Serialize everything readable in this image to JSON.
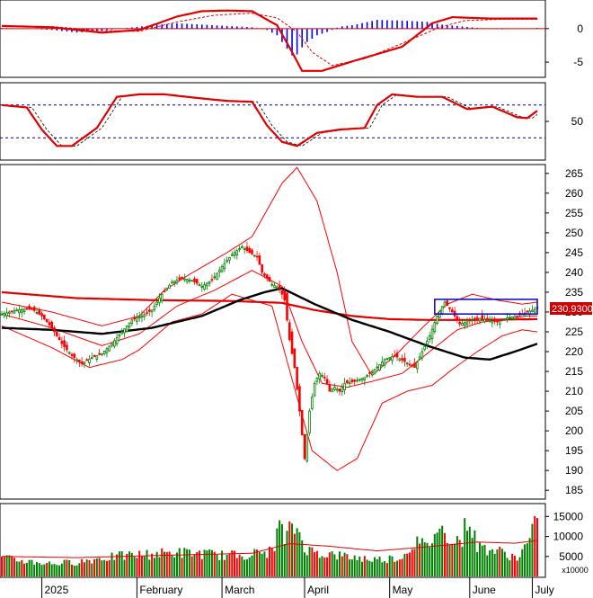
{
  "chart_data": {
    "type": "candlestick",
    "title": "",
    "x_month_labels": [
      "2025",
      "February",
      "March",
      "April",
      "May",
      "June",
      "July"
    ],
    "price": {
      "ylim": [
        183,
        267
      ],
      "ticks": [
        185,
        190,
        195,
        200,
        205,
        210,
        215,
        220,
        225,
        230,
        235,
        240,
        245,
        250,
        255,
        260,
        265
      ],
      "last_price_label": "230.9300",
      "colors": {
        "up": "#008000",
        "down": "#ff0000",
        "bollinger": "#ff0000",
        "ma_black": "#000000",
        "ma_red": "#e00000",
        "box": "#0000cc"
      },
      "close_path": [
        [
          0,
          229.5
        ],
        [
          6,
          230.5
        ],
        [
          12,
          230.8
        ],
        [
          16,
          229.0
        ],
        [
          20,
          226.0
        ],
        [
          24,
          222.0
        ],
        [
          28,
          219.0
        ],
        [
          32,
          217.0
        ],
        [
          36,
          218.5
        ],
        [
          40,
          219.5
        ],
        [
          44,
          222.0
        ],
        [
          48,
          225.0
        ],
        [
          52,
          228.0
        ],
        [
          56,
          229.0
        ],
        [
          60,
          230.5
        ],
        [
          64,
          234.5
        ],
        [
          68,
          237.5
        ],
        [
          72,
          238.5
        ],
        [
          76,
          238.0
        ],
        [
          80,
          236.5
        ],
        [
          84,
          238.0
        ],
        [
          88,
          241.5
        ],
        [
          92,
          244.5
        ],
        [
          96,
          246.5
        ],
        [
          99,
          245.0
        ],
        [
          102,
          244.0
        ],
        [
          104,
          240.0
        ],
        [
          108,
          237.0
        ],
        [
          111,
          236.0
        ],
        [
          113,
          233.0
        ],
        [
          115,
          223.0
        ],
        [
          117,
          216.0
        ],
        [
          119,
          205.0
        ],
        [
          121,
          193.0
        ],
        [
          123,
          205.0
        ],
        [
          125,
          212.0
        ],
        [
          127,
          214.5
        ],
        [
          129,
          213.5
        ],
        [
          131,
          210.0
        ],
        [
          133,
          211.0
        ],
        [
          135,
          210.0
        ],
        [
          137,
          212.0
        ],
        [
          141,
          212.5
        ],
        [
          145,
          213.5
        ],
        [
          149,
          215.5
        ],
        [
          153,
          218.0
        ],
        [
          157,
          219.0
        ],
        [
          161,
          217.5
        ],
        [
          165,
          216.0
        ],
        [
          168,
          220.0
        ],
        [
          171,
          224.0
        ],
        [
          174,
          229.0
        ],
        [
          177,
          232.5
        ],
        [
          180,
          230.0
        ],
        [
          183,
          227.0
        ],
        [
          186,
          227.5
        ],
        [
          190,
          228.5
        ],
        [
          194,
          228.0
        ],
        [
          198,
          227.5
        ],
        [
          202,
          228.5
        ],
        [
          206,
          229.0
        ],
        [
          210,
          230.0
        ],
        [
          214,
          230.9
        ]
      ],
      "bollinger_upper": [
        [
          0,
          232.5
        ],
        [
          20,
          230.0
        ],
        [
          40,
          226.5
        ],
        [
          55,
          229.0
        ],
        [
          65,
          235.5
        ],
        [
          75,
          239.5
        ],
        [
          90,
          245.0
        ],
        [
          100,
          249.0
        ],
        [
          112,
          262.5
        ],
        [
          118,
          266.5
        ],
        [
          126,
          258.0
        ],
        [
          134,
          240.0
        ],
        [
          140,
          222.5
        ],
        [
          148,
          214.0
        ],
        [
          158,
          219.5
        ],
        [
          168,
          226.0
        ],
        [
          178,
          232.0
        ],
        [
          188,
          234.5
        ],
        [
          198,
          233.0
        ],
        [
          208,
          232.0
        ],
        [
          214,
          232.5
        ]
      ],
      "bollinger_lower": [
        [
          0,
          226.5
        ],
        [
          20,
          221.0
        ],
        [
          35,
          216.0
        ],
        [
          48,
          218.0
        ],
        [
          55,
          220.5
        ],
        [
          68,
          227.5
        ],
        [
          80,
          229.5
        ],
        [
          92,
          234.5
        ],
        [
          108,
          231.5
        ],
        [
          116,
          213.0
        ],
        [
          124,
          195.0
        ],
        [
          134,
          190.0
        ],
        [
          142,
          193.0
        ],
        [
          152,
          207.0
        ],
        [
          162,
          210.0
        ],
        [
          172,
          211.5
        ],
        [
          180,
          215.5
        ],
        [
          190,
          220.0
        ],
        [
          200,
          224.0
        ],
        [
          208,
          225.5
        ],
        [
          214,
          225.0
        ]
      ],
      "bollinger_mid": [
        [
          0,
          229.5
        ],
        [
          20,
          226.0
        ],
        [
          40,
          221.5
        ],
        [
          55,
          224.5
        ],
        [
          70,
          231.5
        ],
        [
          85,
          235.5
        ],
        [
          100,
          240.5
        ],
        [
          112,
          236.5
        ],
        [
          120,
          222.5
        ],
        [
          128,
          212.0
        ],
        [
          138,
          211.0
        ],
        [
          148,
          212.5
        ],
        [
          160,
          214.5
        ],
        [
          172,
          220.5
        ],
        [
          182,
          225.5
        ],
        [
          192,
          227.5
        ],
        [
          200,
          228.0
        ],
        [
          210,
          229.0
        ],
        [
          214,
          229.0
        ]
      ],
      "ma_black": [
        [
          0,
          226.0
        ],
        [
          20,
          225.5
        ],
        [
          40,
          224.5
        ],
        [
          60,
          226.0
        ],
        [
          80,
          229.0
        ],
        [
          95,
          233.0
        ],
        [
          105,
          235.0
        ],
        [
          112,
          236.0
        ],
        [
          125,
          232.0
        ],
        [
          140,
          228.0
        ],
        [
          155,
          225.0
        ],
        [
          170,
          221.5
        ],
        [
          185,
          218.5
        ],
        [
          195,
          218.0
        ],
        [
          205,
          220.0
        ],
        [
          214,
          222.0
        ]
      ],
      "ma_red": [
        [
          0,
          235.0
        ],
        [
          30,
          233.5
        ],
        [
          60,
          233.0
        ],
        [
          90,
          232.8
        ],
        [
          112,
          232.3
        ],
        [
          125,
          230.5
        ],
        [
          140,
          229.0
        ],
        [
          155,
          228.2
        ],
        [
          170,
          228.0
        ],
        [
          190,
          228.0
        ],
        [
          214,
          228.2
        ]
      ],
      "box": {
        "x0": 173,
        "x1": 214,
        "y0": 229.5,
        "y1": 233.2
      }
    },
    "macd": {
      "ylim": [
        -7,
        4
      ],
      "ticks": [
        0,
        -5
      ],
      "line": [
        [
          0,
          0.4
        ],
        [
          20,
          0.2
        ],
        [
          40,
          -0.6
        ],
        [
          55,
          -0.2
        ],
        [
          70,
          1.8
        ],
        [
          80,
          2.6
        ],
        [
          90,
          2.7
        ],
        [
          100,
          2.6
        ],
        [
          110,
          0.5
        ],
        [
          116,
          -3.5
        ],
        [
          120,
          -6.3
        ],
        [
          128,
          -6.3
        ],
        [
          140,
          -4.9
        ],
        [
          160,
          -2.7
        ],
        [
          172,
          0.8
        ],
        [
          180,
          1.7
        ],
        [
          195,
          1.5
        ],
        [
          214,
          1.5
        ]
      ],
      "signal": [
        [
          0,
          0.3
        ],
        [
          20,
          0.3
        ],
        [
          40,
          -0.3
        ],
        [
          55,
          -0.4
        ],
        [
          70,
          1.0
        ],
        [
          85,
          2.0
        ],
        [
          100,
          2.3
        ],
        [
          110,
          1.6
        ],
        [
          118,
          -0.5
        ],
        [
          124,
          -3.5
        ],
        [
          132,
          -5.5
        ],
        [
          145,
          -4.5
        ],
        [
          160,
          -2.2
        ],
        [
          175,
          0.2
        ],
        [
          185,
          1.2
        ],
        [
          200,
          1.4
        ],
        [
          214,
          1.4
        ]
      ],
      "histogram": [
        [
          0,
          0.1
        ],
        [
          10,
          0.0
        ],
        [
          20,
          -0.2
        ],
        [
          30,
          -0.6
        ],
        [
          40,
          -0.3
        ],
        [
          50,
          0.1
        ],
        [
          60,
          0.5
        ],
        [
          70,
          0.8
        ],
        [
          80,
          0.6
        ],
        [
          90,
          0.4
        ],
        [
          100,
          0.2
        ],
        [
          106,
          -0.2
        ],
        [
          110,
          -1.0
        ],
        [
          114,
          -3.0
        ],
        [
          117,
          -4.5
        ],
        [
          119,
          -3.2
        ],
        [
          122,
          -2.0
        ],
        [
          126,
          -1.0
        ],
        [
          130,
          -0.5
        ],
        [
          135,
          0.3
        ],
        [
          140,
          0.5
        ],
        [
          150,
          1.3
        ],
        [
          160,
          1.2
        ],
        [
          170,
          1.0
        ],
        [
          176,
          0.6
        ],
        [
          182,
          0.4
        ],
        [
          190,
          0.1
        ],
        [
          200,
          -0.1
        ],
        [
          210,
          0.0
        ],
        [
          214,
          0.1
        ]
      ],
      "colors": {
        "line": "#e00000",
        "signal": "#e00000",
        "histogram": "#0000ff"
      }
    },
    "rsi": {
      "ylim": [
        5,
        95
      ],
      "ticks": [
        50
      ],
      "guides": [
        70,
        30
      ],
      "line": [
        [
          0,
          70
        ],
        [
          10,
          67
        ],
        [
          16,
          40
        ],
        [
          22,
          20
        ],
        [
          28,
          20
        ],
        [
          38,
          42
        ],
        [
          46,
          80
        ],
        [
          55,
          83
        ],
        [
          65,
          83
        ],
        [
          80,
          78
        ],
        [
          90,
          75
        ],
        [
          100,
          74
        ],
        [
          106,
          45
        ],
        [
          112,
          25
        ],
        [
          118,
          20
        ],
        [
          126,
          36
        ],
        [
          135,
          40
        ],
        [
          145,
          42
        ],
        [
          150,
          70
        ],
        [
          156,
          83
        ],
        [
          166,
          80
        ],
        [
          176,
          80
        ],
        [
          186,
          65
        ],
        [
          196,
          68
        ],
        [
          206,
          55
        ],
        [
          210,
          54
        ],
        [
          214,
          63
        ]
      ],
      "colors": {
        "line": "#e00000",
        "guides": "#000080"
      }
    },
    "volume": {
      "ylim": [
        0,
        18000
      ],
      "ticks": [
        5000,
        10000,
        15000
      ],
      "unit_label": "x10000",
      "bars": [
        [
          0,
          4500
        ],
        [
          10,
          3800
        ],
        [
          20,
          3200
        ],
        [
          30,
          3600
        ],
        [
          40,
          4600
        ],
        [
          50,
          5200
        ],
        [
          60,
          5600
        ],
        [
          70,
          6000
        ],
        [
          80,
          5700
        ],
        [
          90,
          5200
        ],
        [
          100,
          5600
        ],
        [
          108,
          6200
        ],
        [
          111,
          12800
        ],
        [
          113,
          9200
        ],
        [
          115,
          11200
        ],
        [
          117,
          12400
        ],
        [
          119,
          10800
        ],
        [
          121,
          7600
        ],
        [
          123,
          6400
        ],
        [
          130,
          5600
        ],
        [
          140,
          4800
        ],
        [
          150,
          4200
        ],
        [
          160,
          4800
        ],
        [
          165,
          8800
        ],
        [
          170,
          7200
        ],
        [
          174,
          12000
        ],
        [
          178,
          10400
        ],
        [
          184,
          8800
        ],
        [
          186,
          15200
        ],
        [
          190,
          7600
        ],
        [
          200,
          6000
        ],
        [
          206,
          4600
        ],
        [
          210,
          8000
        ],
        [
          214,
          13600
        ]
      ],
      "ma_line": [
        [
          0,
          5000
        ],
        [
          30,
          4700
        ],
        [
          60,
          5200
        ],
        [
          100,
          5800
        ],
        [
          115,
          8200
        ],
        [
          130,
          7600
        ],
        [
          150,
          6400
        ],
        [
          170,
          7400
        ],
        [
          190,
          8600
        ],
        [
          205,
          8300
        ],
        [
          214,
          9000
        ]
      ],
      "colors": {
        "up": "#008000",
        "down": "#ff0000",
        "ma": "#e00000"
      }
    }
  }
}
